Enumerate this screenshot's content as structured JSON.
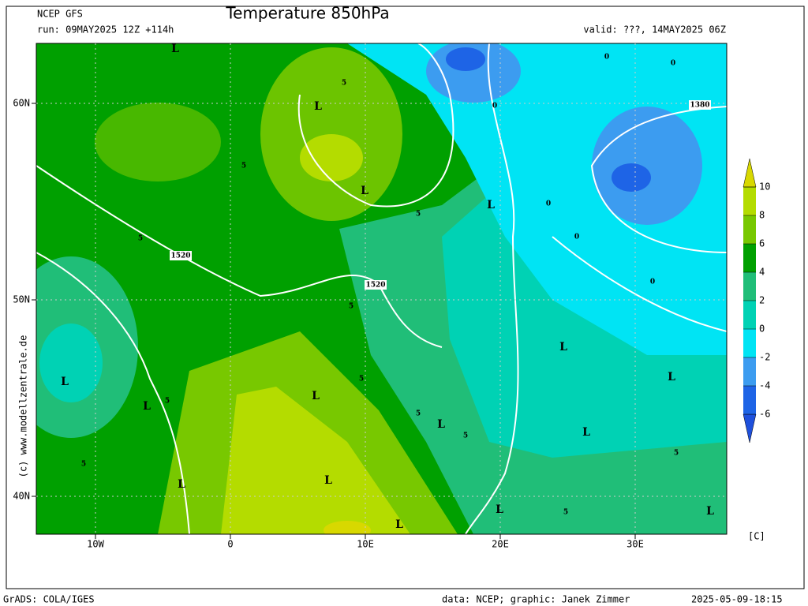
{
  "header": {
    "model": "NCEP GFS",
    "run": "run: 09MAY2025 12Z +114h",
    "title": "Temperature 850hPa",
    "valid": "valid: ???, 14MAY2025 06Z"
  },
  "map": {
    "lat_ticks": [
      {
        "value": 60,
        "label": "60N"
      },
      {
        "value": 50,
        "label": "50N"
      },
      {
        "value": 40,
        "label": "40N"
      }
    ],
    "lon_ticks": [
      {
        "value": -10,
        "label": "10W"
      },
      0,
      {
        "value": 10,
        "label": "10E"
      },
      {
        "value": 20,
        "label": "20E"
      },
      {
        "value": 30,
        "label": "30E"
      }
    ],
    "labels": [
      "L",
      "L",
      "L",
      "L",
      "L",
      "L",
      "L",
      "L",
      "L",
      "L",
      "L",
      "L",
      "L",
      "L",
      "L",
      "L",
      "1520",
      "1520",
      "1380",
      "5",
      "5",
      "5",
      "5",
      "5",
      "5",
      "5",
      "5",
      "5",
      "5",
      "5",
      "5",
      "0",
      "0",
      "0",
      "0",
      "0",
      "0"
    ],
    "copyright": "(c) www.modellzentrale.de"
  },
  "colorbar": {
    "ticks": [
      10,
      8,
      6,
      4,
      2,
      0,
      -2,
      -4,
      -6
    ],
    "colors": [
      "#1e50dc",
      "#1e64e6",
      "#3c9cf0",
      "#00e4f4",
      "#00d2b4",
      "#20be78",
      "#00a000",
      "#78c800",
      "#b4dc00",
      "#d8d800"
    ],
    "unit": "[C]"
  },
  "footer": {
    "left": "GrADS: COLA/IGES",
    "middle": "data: NCEP; graphic: Janek Zimmer",
    "right": "2025-05-09-18:15"
  }
}
